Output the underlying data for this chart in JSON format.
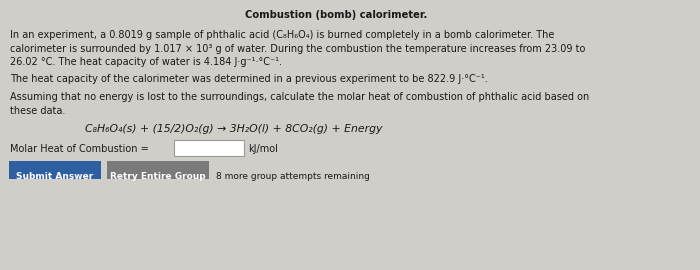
{
  "title_line": "Combustion (bomb) calorimeter.",
  "p1_l1": "In an experiment, a 0.8019 g sample of phthalic acid (C₈H₆O₄) is burned completely in a bomb calorimeter. The",
  "p1_l2": "calorimeter is surrounded by 1.017 × 10³ g of water. During the combustion the temperature increases from 23.09 to",
  "p1_l3": "26.02 °C. The heat capacity of water is 4.184 J·g⁻¹·°C⁻¹.",
  "p2": "The heat capacity of the calorimeter was determined in a previous experiment to be 822.9 J·°C⁻¹.",
  "p3_l1": "Assuming that no energy is lost to the surroundings, calculate the molar heat of combustion of phthalic acid based on",
  "p3_l2": "these data.",
  "equation": "C₈H₆O₄(s) + (15/2)O₂(g) → 3H₂O(l) + 8CO₂(g) + Energy",
  "input_label": "Molar Heat of Combustion =",
  "input_unit": "kJ/mol",
  "btn1_text": "Submit Answer",
  "btn2_text": "Retry Entire Group",
  "remaining_text": "8 more group attempts remaining",
  "bg_color": "#d0cec8",
  "content_bg": "#e2e0db",
  "btn1_color": "#2e5fa3",
  "btn2_color": "#7a7a7a",
  "text_color": "#1a1a1a",
  "fs_body": 7.0,
  "fs_title": 7.2,
  "fs_eq": 7.8,
  "fs_btn": 6.5
}
